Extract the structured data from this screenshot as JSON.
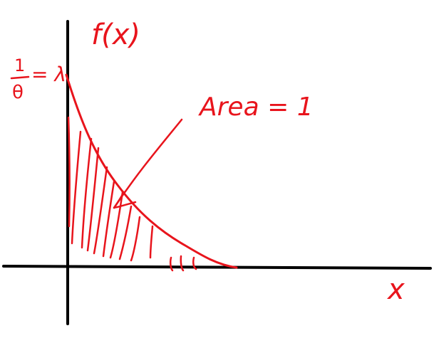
{
  "labels": {
    "function_label": "f(x)",
    "intercept_numerator": "1",
    "intercept_denominator": "θ",
    "intercept_suffix": "= λ",
    "area_label": "Area = 1",
    "x_axis_label": "x"
  },
  "colors": {
    "ink_red": "#e8141c",
    "ink_black": "#000000",
    "background": "#ffffff"
  }
}
